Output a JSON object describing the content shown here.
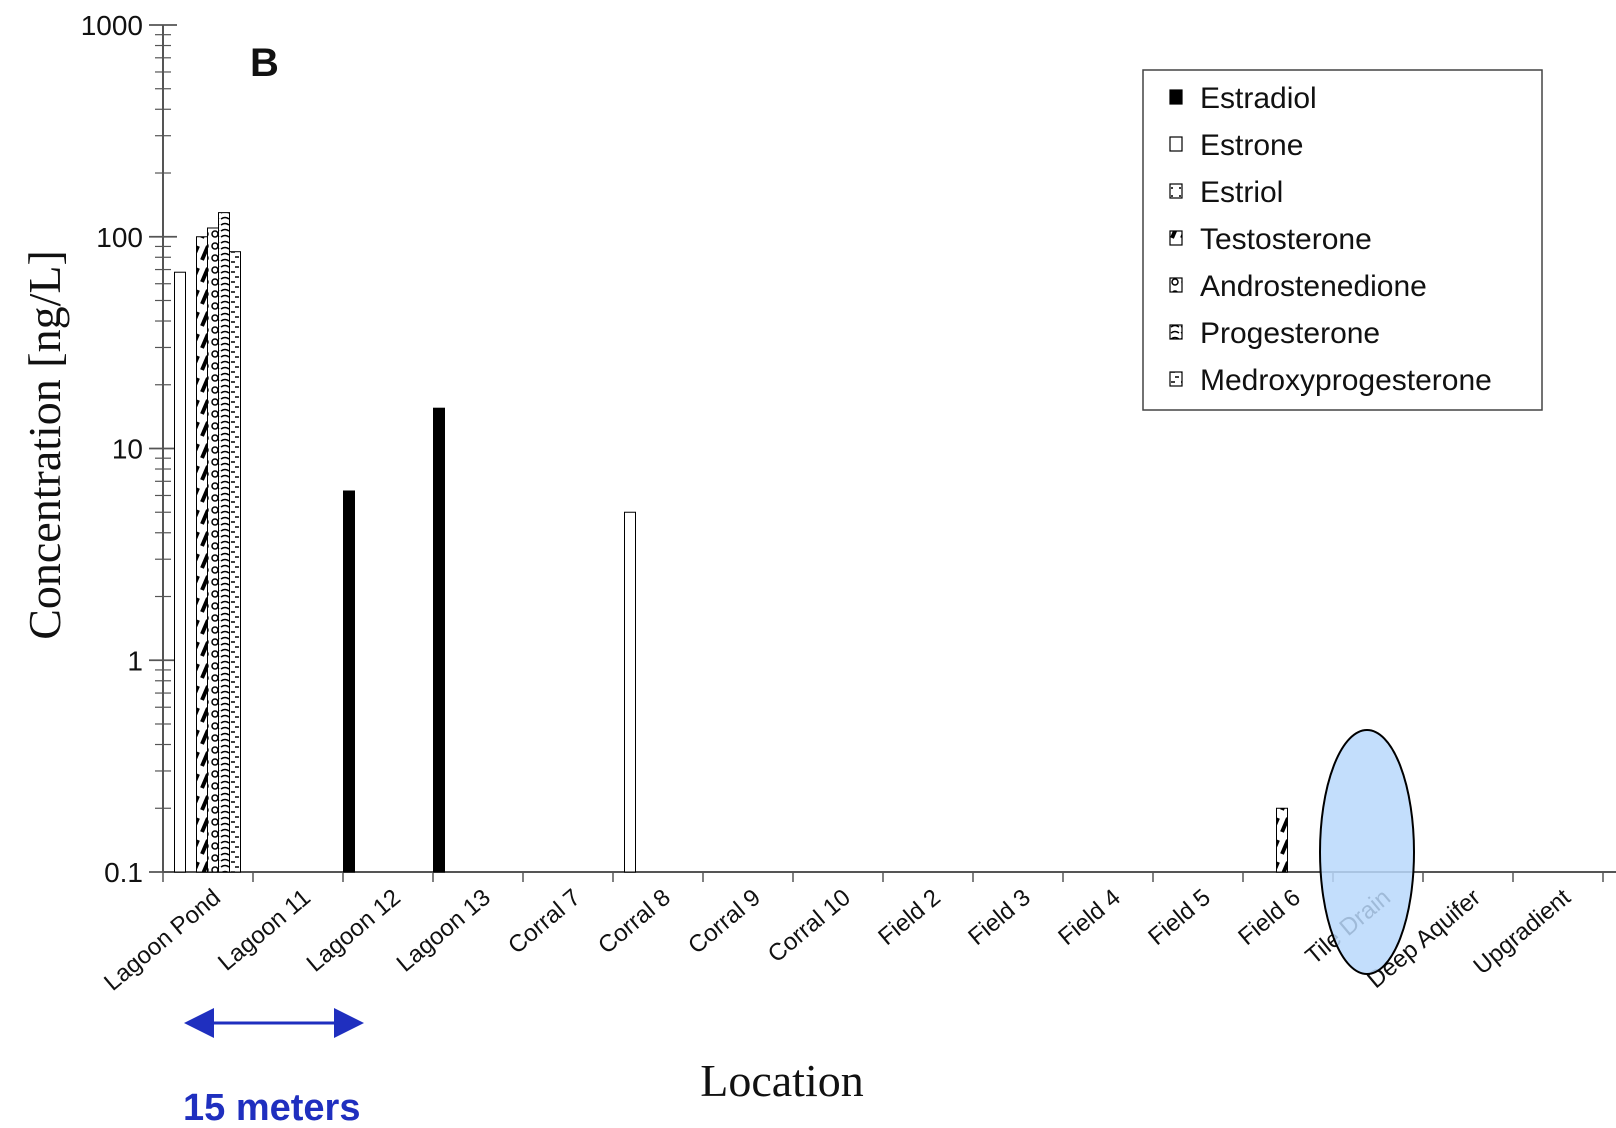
{
  "chart_data": {
    "type": "bar",
    "title": "",
    "panel_label": "B",
    "xlabel": "Location",
    "ylabel": "Concentration [ng/L]",
    "yscale": "log",
    "ylim": [
      0.1,
      1000
    ],
    "yticks": [
      {
        "value": 0.1,
        "label": "0.1"
      },
      {
        "value": 1,
        "label": "1"
      },
      {
        "value": 10,
        "label": "10"
      },
      {
        "value": 100,
        "label": "100"
      },
      {
        "value": 1000,
        "label": "1000"
      }
    ],
    "categories": [
      "Lagoon Pond",
      "Lagoon 11",
      "Lagoon 12",
      "Lagoon 13",
      "Corral 7",
      "Corral 8",
      "Corral 9",
      "Corral 10",
      "Field 2",
      "Field 3",
      "Field 4",
      "Field 5",
      "Field 6",
      "Tile Drain",
      "Deep Aquifer",
      "Upgradient"
    ],
    "series": [
      {
        "name": "Estradiol",
        "pattern": "solid",
        "values": [
          null,
          null,
          6.3,
          15.5,
          null,
          null,
          null,
          null,
          null,
          null,
          null,
          null,
          null,
          null,
          null,
          null
        ]
      },
      {
        "name": "Estrone",
        "pattern": "open",
        "values": [
          68,
          null,
          null,
          null,
          null,
          5,
          null,
          null,
          null,
          null,
          null,
          null,
          null,
          null,
          null,
          null
        ]
      },
      {
        "name": "Estriol",
        "pattern": "dots",
        "values": [
          null,
          null,
          null,
          null,
          null,
          null,
          null,
          null,
          null,
          null,
          null,
          null,
          null,
          null,
          null,
          null
        ]
      },
      {
        "name": "Testosterone",
        "pattern": "diagonal",
        "values": [
          100,
          null,
          null,
          null,
          null,
          null,
          null,
          null,
          null,
          null,
          null,
          null,
          0.2,
          null,
          null,
          null
        ]
      },
      {
        "name": "Androstenedione",
        "pattern": "circles",
        "values": [
          110,
          null,
          null,
          null,
          null,
          null,
          null,
          null,
          null,
          null,
          null,
          null,
          null,
          null,
          null,
          null
        ]
      },
      {
        "name": "Progesterone",
        "pattern": "waves",
        "values": [
          130,
          null,
          null,
          null,
          null,
          null,
          null,
          null,
          null,
          null,
          null,
          null,
          null,
          null,
          null,
          null
        ]
      },
      {
        "name": "Medroxyprogesterone",
        "pattern": "dashes",
        "values": [
          85,
          null,
          null,
          null,
          null,
          null,
          null,
          null,
          null,
          null,
          null,
          null,
          null,
          null,
          null,
          null
        ]
      }
    ],
    "legend_position": "top-right",
    "grid": false,
    "annotations": {
      "distance_label": "15 meters",
      "highlight": "Tile Drain"
    }
  }
}
